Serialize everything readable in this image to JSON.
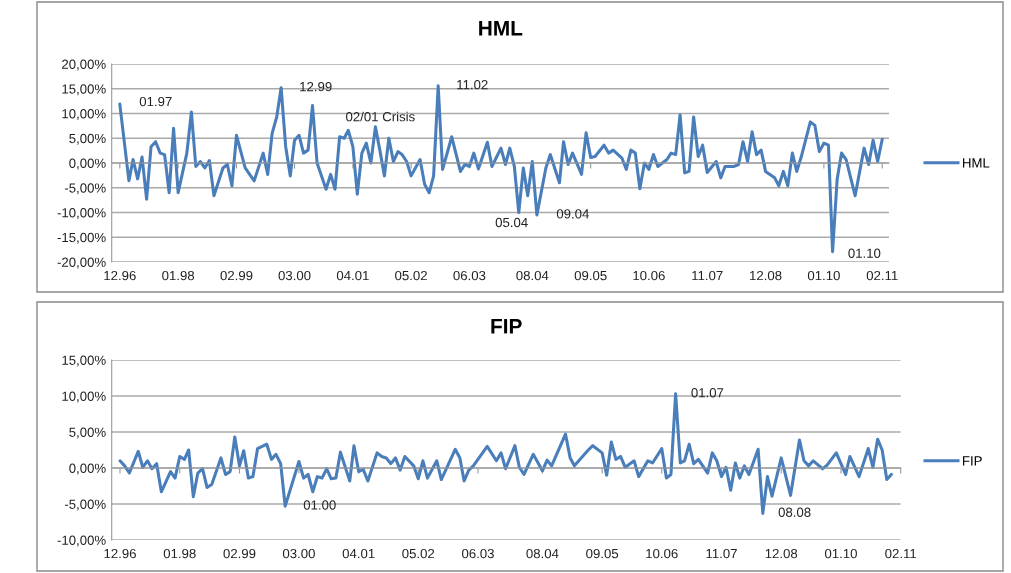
{
  "chart_data": [
    {
      "type": "line",
      "title": "HML",
      "xlim": [
        "1996-10-07",
        "2011-03-19"
      ],
      "ylim": [
        -20,
        20
      ],
      "xticks": [
        {
          "value": "1996-12",
          "label": "12.96"
        },
        {
          "value": "1998-01",
          "label": "01.98"
        },
        {
          "value": "1999-02",
          "label": "02.99"
        },
        {
          "value": "2000-03",
          "label": "03.00"
        },
        {
          "value": "2001-04",
          "label": "04.01"
        },
        {
          "value": "2002-05",
          "label": "05.02"
        },
        {
          "value": "2003-06",
          "label": "06.03"
        },
        {
          "value": "2004-08",
          "label": "08.04"
        },
        {
          "value": "2005-09",
          "label": "09.05"
        },
        {
          "value": "2006-10",
          "label": "10.06"
        },
        {
          "value": "2007-11",
          "label": "11.07"
        },
        {
          "value": "2008-12",
          "label": "12.08"
        },
        {
          "value": "2010-01",
          "label": "01.10"
        },
        {
          "value": "2011-02",
          "label": "02.11"
        }
      ],
      "yticks": [
        {
          "value": -20,
          "label": "-20,00%"
        },
        {
          "value": -15,
          "label": "-15,00%"
        },
        {
          "value": -10,
          "label": "-10,00%"
        },
        {
          "value": -5,
          "label": "-5,00%"
        },
        {
          "value": 0,
          "label": "0,00%"
        },
        {
          "value": 5,
          "label": "5,00%"
        },
        {
          "value": 10,
          "label": "10,00%"
        },
        {
          "value": 15,
          "label": "15,00%"
        },
        {
          "value": 20,
          "label": "20,00%"
        }
      ],
      "grid": "y",
      "legend": "right",
      "marker": "none",
      "line_style": "solid",
      "annotations": [
        {
          "text": "01.97",
          "x": "1996-12",
          "y": 11.9
        },
        {
          "text": "12.99",
          "x": "1999-12",
          "y": 15.2
        },
        {
          "text": "02/01 Crisis",
          "x": "2001-03",
          "y": 6.6
        },
        {
          "text": "11.02",
          "x": "2002-11",
          "y": 15.6
        },
        {
          "text": "05.04",
          "x": "2004-05",
          "y": -10
        },
        {
          "text": "09.04",
          "x": "2004-09",
          "y": -10.5
        },
        {
          "text": "01.10",
          "x": "2010-03",
          "y": -17.9
        }
      ],
      "series": [
        {
          "name": "HML",
          "color": "#4a7ebb",
          "x": [
            "1996-12",
            "1997-02",
            "1997-03",
            "1997-04",
            "1997-05",
            "1997-06",
            "1997-07",
            "1997-08",
            "1997-09",
            "1997-10",
            "1997-11",
            "1997-12",
            "1998-01",
            "1998-03",
            "1998-04",
            "1998-05",
            "1998-06",
            "1998-07",
            "1998-08",
            "1998-09",
            "1998-11",
            "1998-12",
            "1999-01",
            "1999-02",
            "1999-04",
            "1999-06",
            "1999-08",
            "1999-09",
            "1999-10",
            "1999-11",
            "1999-12",
            "2000-01",
            "2000-02",
            "2000-03",
            "2000-04",
            "2000-05",
            "2000-06",
            "2000-07",
            "2000-08",
            "2000-10",
            "2000-11",
            "2000-12",
            "2001-01",
            "2001-02",
            "2001-03",
            "2001-04",
            "2001-05",
            "2001-06",
            "2001-07",
            "2001-08",
            "2001-09",
            "2001-10",
            "2001-11",
            "2001-12",
            "2002-01",
            "2002-02",
            "2002-03",
            "2002-04",
            "2002-05",
            "2002-07",
            "2002-08",
            "2002-09",
            "2002-10",
            "2002-11",
            "2002-12",
            "2003-02",
            "2003-04",
            "2003-05",
            "2003-06",
            "2003-07",
            "2003-08",
            "2003-10",
            "2003-11",
            "2004-01",
            "2004-02",
            "2004-03",
            "2004-04",
            "2004-05",
            "2004-06",
            "2004-07",
            "2004-08",
            "2004-09",
            "2004-11",
            "2004-12",
            "2005-02",
            "2005-03",
            "2005-04",
            "2005-05",
            "2005-07",
            "2005-08",
            "2005-09",
            "2005-10",
            "2005-12",
            "2006-01",
            "2006-02",
            "2006-04",
            "2006-05",
            "2006-06",
            "2006-07",
            "2006-08",
            "2006-09",
            "2006-10",
            "2006-11",
            "2006-12",
            "2007-02",
            "2007-03",
            "2007-04",
            "2007-05",
            "2007-06",
            "2007-07",
            "2007-08",
            "2007-09",
            "2007-10",
            "2007-11",
            "2008-01",
            "2008-02",
            "2008-03",
            "2008-05",
            "2008-06",
            "2008-07",
            "2008-08",
            "2008-09",
            "2008-10",
            "2008-11",
            "2008-12",
            "2009-02",
            "2009-03",
            "2009-04",
            "2009-05",
            "2009-06",
            "2009-07",
            "2009-08",
            "2009-10",
            "2009-11",
            "2009-12",
            "2010-01",
            "2010-02",
            "2010-03",
            "2010-04",
            "2010-05",
            "2010-06",
            "2010-08",
            "2010-10",
            "2010-11",
            "2010-12",
            "2011-01",
            "2011-02"
          ],
          "values": [
            11.9,
            -3.6,
            0.7,
            -3.2,
            1.2,
            -7.3,
            3.3,
            4.3,
            2.0,
            1.7,
            -6,
            7,
            -6,
            2,
            10.3,
            -0.7,
            0.3,
            -1,
            0.5,
            -6.6,
            -1,
            -0.3,
            -4.6,
            5.6,
            -1,
            -3.6,
            2,
            -2.3,
            6,
            9.3,
            15.2,
            3.3,
            -2.6,
            4.6,
            5.6,
            2,
            2.6,
            11.6,
            0,
            -5.3,
            -2.3,
            -5.3,
            5.3,
            5,
            6.6,
            3.3,
            -6.3,
            2,
            4,
            0,
            7.3,
            2.6,
            -2.6,
            5,
            0.3,
            2.3,
            1.7,
            0.3,
            -2.6,
            0.7,
            -4.3,
            -6,
            -2.6,
            15.6,
            -1.3,
            5.3,
            -1.7,
            -0.3,
            -0.7,
            2,
            -1.2,
            4.2,
            -0.7,
            3,
            -0.3,
            3,
            -0.7,
            -10,
            -1,
            -6.6,
            0.3,
            -10.5,
            -1,
            1.7,
            -4,
            4.3,
            -0.3,
            2,
            -2.3,
            6.1,
            1.1,
            1.3,
            3.6,
            2,
            2.6,
            1,
            -1.3,
            2.6,
            2,
            -5.2,
            0,
            -1.3,
            1.7,
            -0.7,
            0.7,
            2,
            1.7,
            9.7,
            -2,
            -1.7,
            9.3,
            1.3,
            3.6,
            -1.9,
            0.3,
            -3,
            -0.7,
            -0.7,
            -0.3,
            4.3,
            0.3,
            6.3,
            1.7,
            2.6,
            -1.7,
            -3,
            -4.6,
            -1.7,
            -4.6,
            2,
            -1.7,
            1.3,
            8.3,
            7.6,
            2.3,
            4,
            3.6,
            -17.9,
            -3.3,
            2,
            0.7,
            -6.6,
            3,
            -0.3,
            4.6,
            0.3,
            4.8
          ]
        }
      ]
    },
    {
      "type": "line",
      "title": "FIP",
      "xlim": [
        "1996-10-07",
        "2011-02-01"
      ],
      "ylim": [
        -10,
        15
      ],
      "xticks": [
        {
          "value": "1996-12",
          "label": "12.96"
        },
        {
          "value": "1998-01",
          "label": "01.98"
        },
        {
          "value": "1999-02",
          "label": "02.99"
        },
        {
          "value": "2000-03",
          "label": "03.00"
        },
        {
          "value": "2001-04",
          "label": "04.01"
        },
        {
          "value": "2002-05",
          "label": "05.02"
        },
        {
          "value": "2003-06",
          "label": "06.03"
        },
        {
          "value": "2004-08",
          "label": "08.04"
        },
        {
          "value": "2005-09",
          "label": "09.05"
        },
        {
          "value": "2006-10",
          "label": "10.06"
        },
        {
          "value": "2007-11",
          "label": "11.07"
        },
        {
          "value": "2008-12",
          "label": "12.08"
        },
        {
          "value": "2010-01",
          "label": "01.10"
        },
        {
          "value": "2011-02",
          "label": "02.11"
        }
      ],
      "yticks": [
        {
          "value": -10,
          "label": "-10,00%"
        },
        {
          "value": -5,
          "label": "-5,00%"
        },
        {
          "value": 0,
          "label": "0,00%"
        },
        {
          "value": 5,
          "label": "5,00%"
        },
        {
          "value": 10,
          "label": "10,00%"
        },
        {
          "value": 15,
          "label": "15,00%"
        }
      ],
      "grid": "y",
      "legend": "right",
      "marker": "none",
      "line_style": "solid",
      "annotations": [
        {
          "text": "01.00",
          "x": "1999-12",
          "y": -5.3
        },
        {
          "text": "01.07",
          "x": "2007-01",
          "y": 10.3
        },
        {
          "text": "08.08",
          "x": "2008-08",
          "y": -6.3
        }
      ],
      "series": [
        {
          "name": "FIP",
          "color": "#4a7ebb",
          "x": [
            "1996-12",
            "1997-01",
            "1997-02",
            "1997-04",
            "1997-05",
            "1997-06",
            "1997-07",
            "1997-08",
            "1997-09",
            "1997-11",
            "1997-12",
            "1998-01",
            "1998-02",
            "1998-03",
            "1998-04",
            "1998-05",
            "1998-06",
            "1998-07",
            "1998-08",
            "1998-10",
            "1998-11",
            "1998-12",
            "1999-01",
            "1999-02",
            "1999-03",
            "1999-04",
            "1999-05",
            "1999-06",
            "1999-08",
            "1999-09",
            "1999-10",
            "1999-11",
            "1999-12",
            "2000-03",
            "2000-04",
            "2000-05",
            "2000-06",
            "2000-07",
            "2000-08",
            "2000-09",
            "2000-10",
            "2000-11",
            "2000-12",
            "2001-02",
            "2001-03",
            "2001-04",
            "2001-05",
            "2001-06",
            "2001-08",
            "2001-09",
            "2001-10",
            "2001-11",
            "2001-12",
            "2002-01",
            "2002-02",
            "2002-04",
            "2002-05",
            "2002-06",
            "2002-07",
            "2002-09",
            "2002-10",
            "2003-01",
            "2003-02",
            "2003-03",
            "2003-04",
            "2003-05",
            "2003-08",
            "2003-10",
            "2003-11",
            "2003-12",
            "2004-02",
            "2004-03",
            "2004-04",
            "2004-06",
            "2004-07",
            "2004-08",
            "2004-09",
            "2004-10",
            "2005-01",
            "2005-02",
            "2005-03",
            "2005-06",
            "2005-07",
            "2005-09",
            "2005-10",
            "2005-11",
            "2005-12",
            "2006-01",
            "2006-02",
            "2006-04",
            "2006-05",
            "2006-07",
            "2006-08",
            "2006-10",
            "2006-11",
            "2006-12",
            "2007-01",
            "2007-02",
            "2007-03",
            "2007-04",
            "2007-05",
            "2007-06",
            "2007-08",
            "2007-09",
            "2007-10",
            "2007-11",
            "2007-12",
            "2008-01",
            "2008-02",
            "2008-03",
            "2008-04",
            "2008-05",
            "2008-07",
            "2008-08",
            "2008-09",
            "2008-10",
            "2008-12",
            "2009-02",
            "2009-04",
            "2009-05",
            "2009-06",
            "2009-07",
            "2009-09",
            "2009-10",
            "2009-12",
            "2010-02",
            "2010-03",
            "2010-05",
            "2010-07",
            "2010-08",
            "2010-09",
            "2010-10",
            "2010-11",
            "2010-12"
          ],
          "values": [
            1,
            0.3,
            -0.7,
            2.3,
            0.1,
            1,
            -0.1,
            0.6,
            -3.3,
            -0.5,
            -1.4,
            1.6,
            1.2,
            2.5,
            -4,
            -0.7,
            -0.1,
            -2.7,
            -2.3,
            1.4,
            -0.9,
            -0.5,
            4.3,
            0.3,
            2.4,
            -1.4,
            -1.2,
            2.7,
            3.3,
            1.2,
            1.9,
            0.6,
            -5.3,
            0.9,
            -1.4,
            -0.9,
            -3.3,
            -1.2,
            -1.4,
            -0.1,
            -1.5,
            -1.4,
            2.2,
            -1.8,
            3.1,
            -0.5,
            -0.2,
            -1.8,
            2.1,
            1.6,
            1.4,
            0.6,
            1.4,
            -0.3,
            1.6,
            0.3,
            -1.5,
            1,
            -1.4,
            1,
            -1.6,
            2.6,
            1.4,
            -1.8,
            -0.3,
            0.3,
            3,
            1,
            2.1,
            -0.1,
            3.1,
            0.1,
            -0.9,
            1.9,
            0.8,
            -0.4,
            1.1,
            0.3,
            4.7,
            1.4,
            0.3,
            2.5,
            3.1,
            2.1,
            -1,
            3.6,
            1.2,
            1.6,
            0.1,
            1,
            -1.2,
            1,
            0.7,
            2.7,
            -1.4,
            -0.9,
            10.3,
            0.7,
            1,
            3.3,
            0.6,
            1.2,
            -0.7,
            2.1,
            1,
            -1.2,
            0.1,
            -3.1,
            0.7,
            -1.4,
            0.3,
            -0.9,
            2.6,
            -6.3,
            -1.2,
            -3.9,
            1.4,
            -3.8,
            3.9,
            1,
            0.3,
            1,
            -0.1,
            0.4,
            2.1,
            -0.9,
            1.6,
            -1.2,
            2.7,
            0.1,
            4,
            2.5,
            -1.6,
            -0.9
          ]
        }
      ]
    }
  ]
}
